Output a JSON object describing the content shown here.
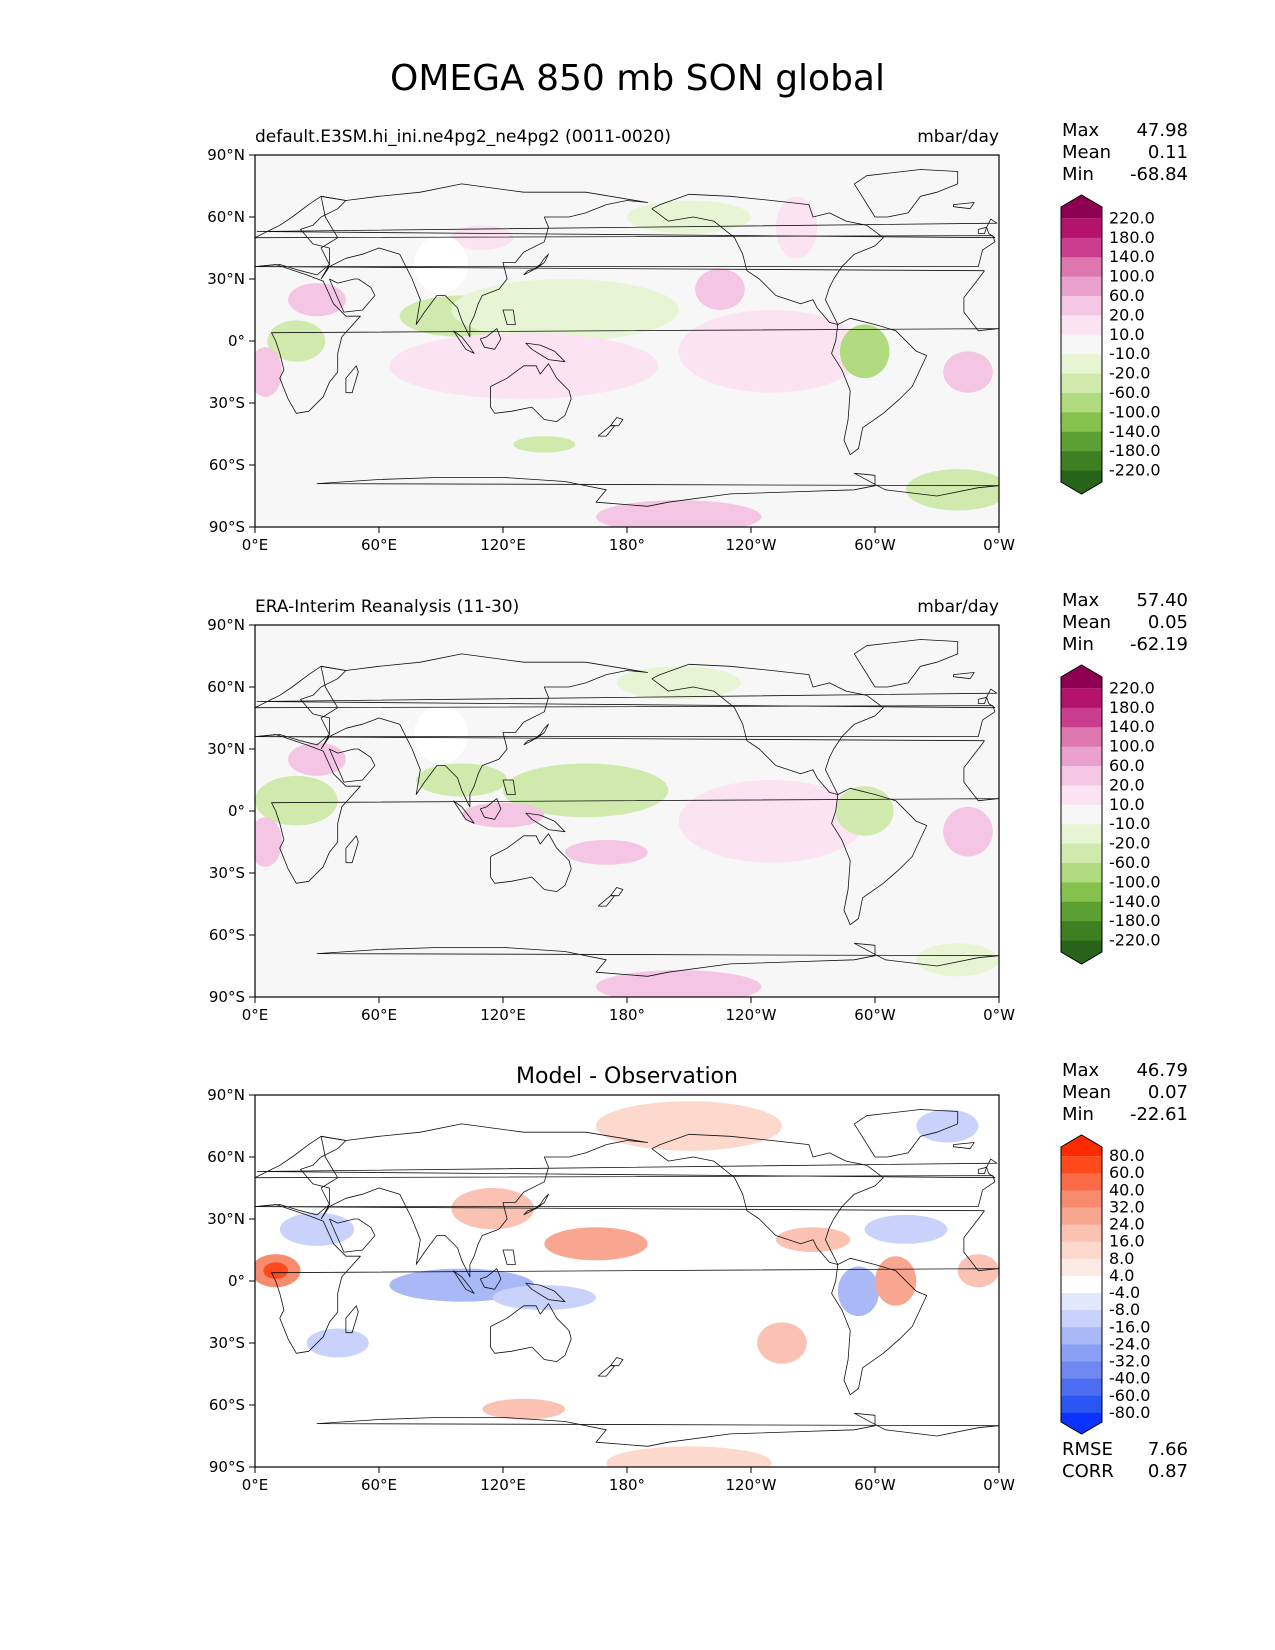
{
  "title": "OMEGA 850 mb SON global",
  "lat_ticks": [
    "90°N",
    "60°N",
    "30°N",
    "0°",
    "30°S",
    "60°S",
    "90°S"
  ],
  "lon_ticks": [
    "0°E",
    "60°E",
    "120°E",
    "180°",
    "120°W",
    "60°W",
    "0°W"
  ],
  "panels": [
    {
      "left_title": "default.E3SM.hi_ini.ne4pg2_ne4pg2 (0011-0020)",
      "center_title": "",
      "units": "mbar/day",
      "stats": [
        {
          "label": "Max",
          "value": "47.98"
        },
        {
          "label": "Mean",
          "value": "0.11"
        },
        {
          "label": "Min",
          "value": "-68.84"
        }
      ],
      "extra_stats": [],
      "colorbar": {
        "labels": [
          "220.0",
          "180.0",
          "140.0",
          "100.0",
          "60.0",
          "20.0",
          "10.0",
          "-10.0",
          "-20.0",
          "-60.0",
          "-100.0",
          "-140.0",
          "-180.0",
          "-220.0"
        ],
        "colors": [
          "#8e0152",
          "#b5126e",
          "#cb3d8f",
          "#de77ae",
          "#eba1cd",
          "#f4c6e3",
          "#fbe3f1",
          "#f7f7f7",
          "#e8f5d5",
          "#cfeaac",
          "#b0dc7f",
          "#86c04d",
          "#5c9f32",
          "#3e7f22",
          "#276419"
        ]
      },
      "blobs": [
        {
          "lon": 30,
          "lat": 20,
          "rx": 14,
          "ry": 8,
          "color": "#f4c6e3"
        },
        {
          "lon": 20,
          "lat": 0,
          "rx": 14,
          "ry": 10,
          "color": "#cfeaac"
        },
        {
          "lon": 5,
          "lat": -15,
          "rx": 8,
          "ry": 12,
          "color": "#f4c6e3"
        },
        {
          "lon": 100,
          "lat": 12,
          "rx": 30,
          "ry": 10,
          "color": "#cfeaac"
        },
        {
          "lon": 150,
          "lat": 12,
          "rx": 25,
          "ry": 7,
          "color": "#b0dc7f"
        },
        {
          "lon": 150,
          "lat": 15,
          "rx": 55,
          "ry": 15,
          "color": "#e8f5d5"
        },
        {
          "lon": 130,
          "lat": -15,
          "rx": 25,
          "ry": 10,
          "color": "#f4c6e3"
        },
        {
          "lon": 130,
          "lat": -12,
          "rx": 65,
          "ry": 16,
          "color": "#fbe3f1"
        },
        {
          "lon": 245,
          "lat": -10,
          "rx": 25,
          "ry": 13,
          "color": "#f4c6e3"
        },
        {
          "lon": 250,
          "lat": -5,
          "rx": 45,
          "ry": 20,
          "color": "#fbe3f1"
        },
        {
          "lon": 295,
          "lat": -5,
          "rx": 12,
          "ry": 13,
          "color": "#b0dc7f"
        },
        {
          "lon": 345,
          "lat": -15,
          "rx": 12,
          "ry": 10,
          "color": "#f4c6e3"
        },
        {
          "lon": 225,
          "lat": 25,
          "rx": 12,
          "ry": 10,
          "color": "#f4c6e3"
        },
        {
          "lon": 262,
          "lat": 55,
          "rx": 10,
          "ry": 15,
          "color": "#fbe3f1"
        },
        {
          "lon": 210,
          "lat": 60,
          "rx": 30,
          "ry": 8,
          "color": "#e8f5d5"
        },
        {
          "lon": 110,
          "lat": 50,
          "rx": 15,
          "ry": 6,
          "color": "#fbe3f1"
        },
        {
          "lon": 140,
          "lat": -50,
          "rx": 15,
          "ry": 4,
          "color": "#cfeaac"
        },
        {
          "lon": 205,
          "lat": -85,
          "rx": 40,
          "ry": 8,
          "color": "#f4c6e3"
        },
        {
          "lon": 340,
          "lat": -72,
          "rx": 25,
          "ry": 10,
          "color": "#cfeaac"
        },
        {
          "lon": 90,
          "lat": 37,
          "rx": 13,
          "ry": 14,
          "color": "#ffffff"
        }
      ]
    },
    {
      "left_title": "ERA-Interim Reanalysis (11-30)",
      "center_title": "",
      "units": "mbar/day",
      "stats": [
        {
          "label": "Max",
          "value": "57.40"
        },
        {
          "label": "Mean",
          "value": "0.05"
        },
        {
          "label": "Min",
          "value": "-62.19"
        }
      ],
      "extra_stats": [],
      "colorbar": {
        "labels": [
          "220.0",
          "180.0",
          "140.0",
          "100.0",
          "60.0",
          "20.0",
          "10.0",
          "-10.0",
          "-20.0",
          "-60.0",
          "-100.0",
          "-140.0",
          "-180.0",
          "-220.0"
        ],
        "colors": [
          "#8e0152",
          "#b5126e",
          "#cb3d8f",
          "#de77ae",
          "#eba1cd",
          "#f4c6e3",
          "#fbe3f1",
          "#f7f7f7",
          "#e8f5d5",
          "#cfeaac",
          "#b0dc7f",
          "#86c04d",
          "#5c9f32",
          "#3e7f22",
          "#276419"
        ]
      },
      "blobs": [
        {
          "lon": 20,
          "lat": 5,
          "rx": 20,
          "ry": 12,
          "color": "#cfeaac"
        },
        {
          "lon": 5,
          "lat": -15,
          "rx": 8,
          "ry": 12,
          "color": "#f4c6e3"
        },
        {
          "lon": 30,
          "lat": 25,
          "rx": 14,
          "ry": 8,
          "color": "#f4c6e3"
        },
        {
          "lon": 160,
          "lat": 10,
          "rx": 40,
          "ry": 13,
          "color": "#cfeaac"
        },
        {
          "lon": 100,
          "lat": 15,
          "rx": 22,
          "ry": 8,
          "color": "#cfeaac"
        },
        {
          "lon": 245,
          "lat": -10,
          "rx": 25,
          "ry": 12,
          "color": "#f4c6e3"
        },
        {
          "lon": 250,
          "lat": -5,
          "rx": 45,
          "ry": 20,
          "color": "#fbe3f1"
        },
        {
          "lon": 295,
          "lat": 0,
          "rx": 14,
          "ry": 12,
          "color": "#cfeaac"
        },
        {
          "lon": 345,
          "lat": -10,
          "rx": 12,
          "ry": 12,
          "color": "#f4c6e3"
        },
        {
          "lon": 120,
          "lat": -2,
          "rx": 20,
          "ry": 6,
          "color": "#f4c6e3"
        },
        {
          "lon": 170,
          "lat": -20,
          "rx": 20,
          "ry": 6,
          "color": "#f4c6e3"
        },
        {
          "lon": 205,
          "lat": 62,
          "rx": 30,
          "ry": 8,
          "color": "#e8f5d5"
        },
        {
          "lon": 205,
          "lat": -85,
          "rx": 40,
          "ry": 8,
          "color": "#f4c6e3"
        },
        {
          "lon": 340,
          "lat": -72,
          "rx": 20,
          "ry": 8,
          "color": "#e8f5d5"
        },
        {
          "lon": 90,
          "lat": 37,
          "rx": 13,
          "ry": 14,
          "color": "#ffffff"
        }
      ]
    },
    {
      "left_title": "",
      "center_title": "Model - Observation",
      "units": "",
      "stats": [
        {
          "label": "Max",
          "value": "46.79"
        },
        {
          "label": "Mean",
          "value": "0.07"
        },
        {
          "label": "Min",
          "value": "-22.61"
        }
      ],
      "extra_stats": [
        {
          "label": "RMSE",
          "value": "7.66"
        },
        {
          "label": "CORR",
          "value": "0.87"
        }
      ],
      "colorbar": {
        "labels": [
          "80.0",
          "60.0",
          "40.0",
          "32.0",
          "24.0",
          "16.0",
          "8.0",
          "4.0",
          "-4.0",
          "-8.0",
          "-16.0",
          "-24.0",
          "-32.0",
          "-40.0",
          "-60.0",
          "-80.0"
        ],
        "colors": [
          "#ff2a00",
          "#ff4a1c",
          "#fa6a47",
          "#f88a6d",
          "#f9a690",
          "#fbc1b2",
          "#fdd8cc",
          "#feeae4",
          "#ffffff",
          "#e2e8fc",
          "#c8d2fa",
          "#a9b8f7",
          "#8aa0f4",
          "#6e87f1",
          "#4d6df0",
          "#2a55f3",
          "#0a33ff"
        ]
      },
      "blobs": [
        {
          "lon": 10,
          "lat": 5,
          "rx": 12,
          "ry": 8,
          "color": "#f88a6d"
        },
        {
          "lon": 10,
          "lat": 5,
          "rx": 6,
          "ry": 4,
          "color": "#ff4a1c"
        },
        {
          "lon": 30,
          "lat": 25,
          "rx": 18,
          "ry": 8,
          "color": "#c8d2fa"
        },
        {
          "lon": 100,
          "lat": -2,
          "rx": 35,
          "ry": 8,
          "color": "#a9b8f7"
        },
        {
          "lon": 140,
          "lat": -8,
          "rx": 25,
          "ry": 6,
          "color": "#c8d2fa"
        },
        {
          "lon": 115,
          "lat": 35,
          "rx": 20,
          "ry": 10,
          "color": "#fbc1b2"
        },
        {
          "lon": 165,
          "lat": 18,
          "rx": 25,
          "ry": 8,
          "color": "#f9a690"
        },
        {
          "lon": 255,
          "lat": -30,
          "rx": 12,
          "ry": 10,
          "color": "#fbc1b2"
        },
        {
          "lon": 292,
          "lat": -5,
          "rx": 10,
          "ry": 12,
          "color": "#a9b8f7"
        },
        {
          "lon": 310,
          "lat": 0,
          "rx": 10,
          "ry": 12,
          "color": "#f9a690"
        },
        {
          "lon": 315,
          "lat": 25,
          "rx": 20,
          "ry": 7,
          "color": "#c8d2fa"
        },
        {
          "lon": 270,
          "lat": 20,
          "rx": 18,
          "ry": 6,
          "color": "#fbc1b2"
        },
        {
          "lon": 210,
          "lat": 75,
          "rx": 45,
          "ry": 12,
          "color": "#fdd8cc"
        },
        {
          "lon": 40,
          "lat": -30,
          "rx": 15,
          "ry": 7,
          "color": "#c8d2fa"
        },
        {
          "lon": 130,
          "lat": -62,
          "rx": 20,
          "ry": 5,
          "color": "#fbc1b2"
        },
        {
          "lon": 210,
          "lat": -88,
          "rx": 40,
          "ry": 8,
          "color": "#fdd8cc"
        },
        {
          "lon": 350,
          "lat": 5,
          "rx": 10,
          "ry": 8,
          "color": "#fbc1b2"
        },
        {
          "lon": 335,
          "lat": 75,
          "rx": 15,
          "ry": 8,
          "color": "#c8d2fa"
        }
      ]
    }
  ]
}
